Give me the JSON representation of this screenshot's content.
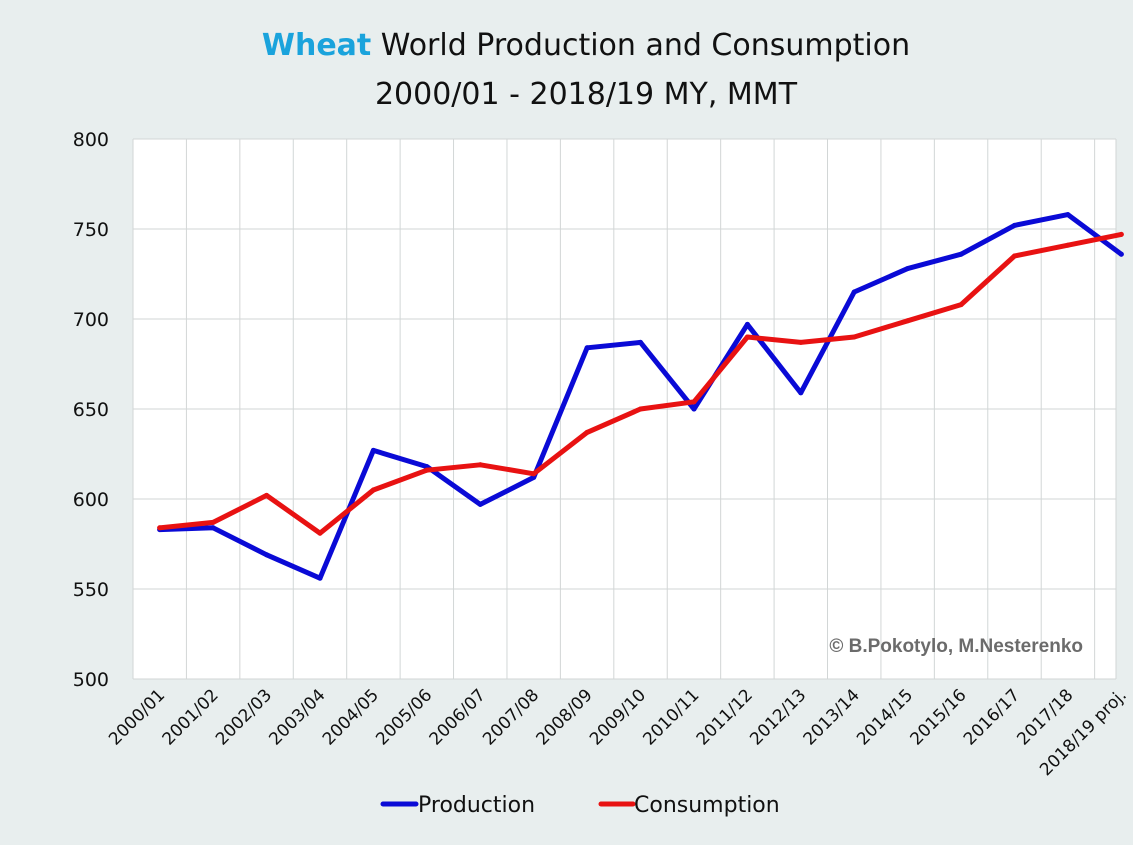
{
  "chart_data": {
    "type": "line",
    "title": {
      "highlight": "Wheat",
      "rest": " World Production and Consumption",
      "line2": "2000/01 - 2018/19 MY, MMT"
    },
    "xlabel": "",
    "ylabel": "",
    "ylim": [
      500,
      800
    ],
    "yticks": [
      500,
      550,
      600,
      650,
      700,
      750,
      800
    ],
    "grid": true,
    "legend_position": "bottom",
    "categories": [
      "2000/01",
      "2001/02",
      "2002/03",
      "2003/04",
      "2004/05",
      "2005/06",
      "2006/07",
      "2007/08",
      "2008/09",
      "2009/10",
      "2010/11",
      "2011/12",
      "2012/13",
      "2013/14",
      "2014/15",
      "2015/16",
      "2016/17",
      "2017/18",
      "2018/19 proj."
    ],
    "series": [
      {
        "name": "Production",
        "color": "#0a0ad6",
        "values": [
          583,
          584,
          569,
          556,
          627,
          618,
          597,
          612,
          684,
          687,
          650,
          697,
          659,
          715,
          728,
          736,
          752,
          758,
          736
        ]
      },
      {
        "name": "Consumption",
        "color": "#e81212",
        "values": [
          584,
          587,
          602,
          581,
          605,
          616,
          619,
          614,
          637,
          650,
          654,
          690,
          687,
          690,
          699,
          708,
          735,
          741,
          747
        ]
      }
    ],
    "annotation": "© B.Pokotylo, M.Nesterenko",
    "colors": {
      "highlight": "#1aa3dc",
      "grid": "#d2d6d6",
      "plot_background": "#ffffff",
      "page_background": "#e8eeee"
    }
  }
}
